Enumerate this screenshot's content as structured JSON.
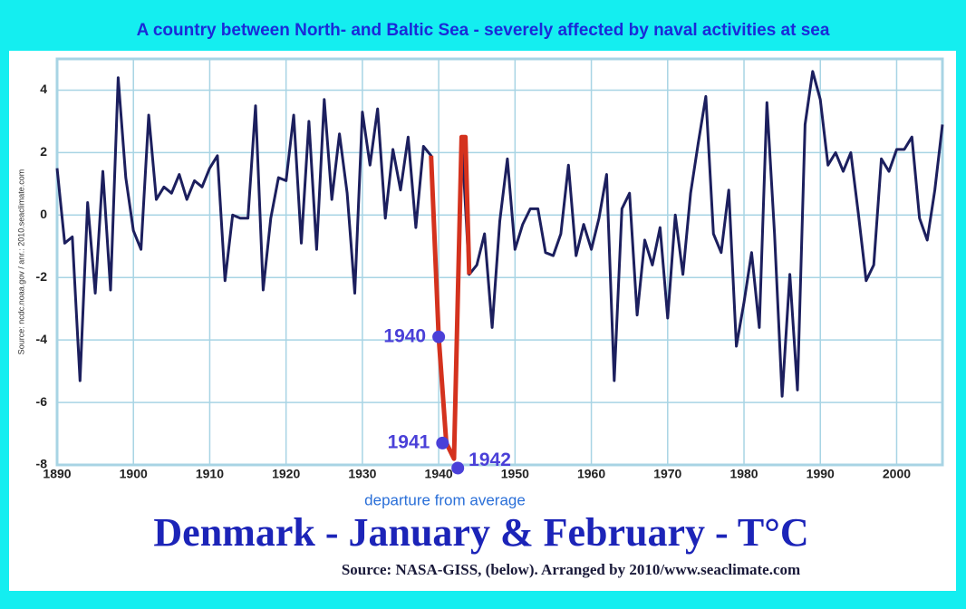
{
  "page_title": "A country between North- and Baltic Sea - severely affected by naval activities at sea",
  "chart_data": {
    "type": "line",
    "title": "Denmark - January & February - T°C",
    "subtitle": "departure from average",
    "source": "Source: NASA-GISS, (below). Arranged by 2010/www.seaclimate.com",
    "side_note": "Source: ncdc.noaa.gov / anr.: 2010.seaclimate.com",
    "xlim": [
      1890,
      2006
    ],
    "ylim": [
      -8,
      5
    ],
    "xticks": [
      1890,
      1900,
      1910,
      1920,
      1930,
      1940,
      1950,
      1960,
      1970,
      1980,
      1990,
      2000
    ],
    "yticks": [
      -8,
      -6,
      -4,
      -2,
      0,
      2,
      4
    ],
    "grid": true,
    "x": [
      1890,
      1891,
      1892,
      1893,
      1894,
      1895,
      1896,
      1897,
      1898,
      1899,
      1900,
      1901,
      1902,
      1903,
      1904,
      1905,
      1906,
      1907,
      1908,
      1909,
      1910,
      1911,
      1912,
      1913,
      1914,
      1915,
      1916,
      1917,
      1918,
      1919,
      1920,
      1921,
      1922,
      1923,
      1924,
      1925,
      1926,
      1927,
      1928,
      1929,
      1930,
      1931,
      1932,
      1933,
      1934,
      1935,
      1936,
      1937,
      1938,
      1939,
      1940,
      1941,
      1942,
      1943,
      1944,
      1945,
      1946,
      1947,
      1948,
      1949,
      1950,
      1951,
      1952,
      1953,
      1954,
      1955,
      1956,
      1957,
      1958,
      1959,
      1960,
      1961,
      1962,
      1963,
      1964,
      1965,
      1966,
      1967,
      1968,
      1969,
      1970,
      1971,
      1972,
      1973,
      1974,
      1975,
      1976,
      1977,
      1978,
      1979,
      1980,
      1981,
      1982,
      1983,
      1984,
      1985,
      1986,
      1987,
      1988,
      1989,
      1990,
      1991,
      1992,
      1993,
      1994,
      1995,
      1996,
      1997,
      1998,
      1999,
      2000,
      2001,
      2002,
      2003,
      2004,
      2005,
      2006
    ],
    "series": [
      {
        "color": "#1c1f5e",
        "values": [
          1.5,
          -0.9,
          -0.7,
          -5.3,
          0.4,
          -2.5,
          1.4,
          -2.4,
          4.4,
          1.2,
          -0.5,
          -1.1,
          3.2,
          0.5,
          0.9,
          0.7,
          1.3,
          0.5,
          1.1,
          0.9,
          1.5,
          1.9,
          -2.1,
          0.0,
          -0.1,
          -0.1,
          3.5,
          -2.4,
          -0.1,
          1.2,
          1.1,
          3.2,
          -0.9,
          3.0,
          -1.1,
          3.7,
          0.5,
          2.6,
          0.7,
          -2.5,
          3.3,
          1.6,
          3.4,
          -0.1,
          2.1,
          0.8,
          2.5,
          -0.4,
          2.2,
          1.9,
          -3.9,
          -7.3,
          -7.8,
          2.5,
          -1.9,
          -1.6,
          -0.6,
          -3.6,
          -0.2,
          1.8,
          -1.1,
          -0.3,
          0.2,
          0.2,
          -1.2,
          -1.3,
          -0.6,
          1.6,
          -1.3,
          -0.3,
          -1.1,
          -0.1,
          1.3,
          -5.3,
          0.2,
          0.7,
          -3.2,
          -0.8,
          -1.6,
          -0.4,
          -3.3,
          0.0,
          -1.9,
          0.7,
          2.3,
          3.8,
          -0.6,
          -1.2,
          0.8,
          -4.2,
          -2.8,
          -1.2,
          -3.6,
          3.6,
          -0.6,
          -5.8,
          -1.9,
          -5.6,
          2.9,
          4.6,
          3.7,
          1.6,
          2.0,
          1.4,
          2.0,
          0.0,
          -2.1,
          -1.6,
          1.8,
          1.4,
          2.1,
          2.1,
          2.5,
          -0.1,
          -0.8,
          0.8,
          2.9
        ]
      },
      {
        "color": "#d4321e",
        "x": [
          1939,
          1940,
          1941,
          1942,
          1943,
          1943.5,
          1944
        ],
        "values": [
          1.9,
          -3.9,
          -7.3,
          -7.8,
          2.5,
          2.5,
          -1.9
        ]
      }
    ],
    "annotations": [
      {
        "label": "1940",
        "x": 1940,
        "y": -3.9
      },
      {
        "label": "1941",
        "x": 1940.5,
        "y": -7.3
      },
      {
        "label": "1942",
        "x": 1942.5,
        "y": -8.1
      }
    ],
    "annotation_color": "#4a40d8"
  }
}
